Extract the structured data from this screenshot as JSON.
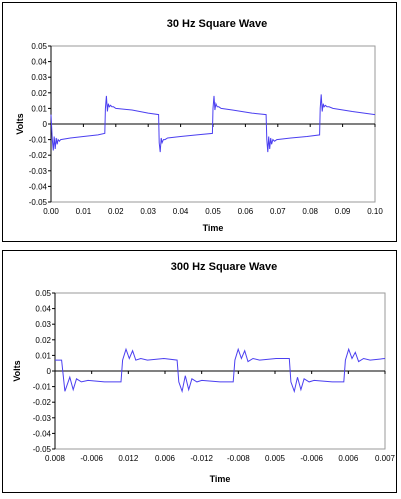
{
  "chart_data": [
    {
      "type": "line",
      "title": "30 Hz Square Wave",
      "xlabel": "Time",
      "ylabel": "Volts",
      "xlim": [
        0,
        0.1
      ],
      "ylim": [
        -0.05,
        0.05
      ],
      "grid": false,
      "line_color": "#4b3ff0",
      "x_ticks": [
        "0.00",
        "0.01",
        "0.02",
        "0.03",
        "0.04",
        "0.05",
        "0.06",
        "0.07",
        "0.08",
        "0.09",
        "0.10"
      ],
      "y_ticks": [
        "-0.05",
        "-0.04",
        "-0.03",
        "-0.02",
        "-0.01",
        "0",
        "0.01",
        "0.02",
        "0.03",
        "0.04",
        "0.05"
      ],
      "series": [
        {
          "x": [
            0.0,
            0.0004,
            0.0007,
            0.001,
            0.0013,
            0.0016,
            0.0019,
            0.0022,
            0.0026,
            0.003,
            0.006,
            0.01,
            0.0145,
            0.0166,
            0.0168,
            0.0171,
            0.0174,
            0.0177,
            0.018,
            0.0184,
            0.0188,
            0.0193,
            0.02,
            0.025,
            0.03,
            0.0332,
            0.0334,
            0.0337,
            0.034,
            0.0343,
            0.0347,
            0.0352,
            0.036,
            0.04,
            0.045,
            0.0498,
            0.05,
            0.0503,
            0.0506,
            0.0509,
            0.0513,
            0.0518,
            0.0525,
            0.056,
            0.062,
            0.0664,
            0.0666,
            0.0669,
            0.0672,
            0.0675,
            0.0678,
            0.0681,
            0.0685,
            0.069,
            0.0697,
            0.074,
            0.079,
            0.0829,
            0.0831,
            0.0834,
            0.0837,
            0.084,
            0.0843,
            0.0847,
            0.0852,
            0.0858,
            0.087,
            0.093,
            0.1
          ],
          "values": [
            0.006,
            -0.01,
            -0.017,
            -0.008,
            -0.016,
            -0.009,
            -0.013,
            -0.01,
            -0.011,
            -0.01,
            -0.009,
            -0.008,
            -0.007,
            -0.006,
            0.01,
            0.018,
            0.008,
            0.013,
            0.011,
            0.012,
            0.011,
            0.011,
            0.01,
            0.009,
            0.007,
            0.006,
            -0.012,
            -0.018,
            -0.009,
            -0.012,
            -0.01,
            -0.01,
            -0.009,
            -0.008,
            -0.007,
            -0.006,
            0.01,
            0.018,
            0.009,
            0.013,
            0.011,
            0.011,
            0.01,
            0.009,
            0.007,
            0.006,
            -0.01,
            -0.018,
            -0.008,
            -0.016,
            -0.009,
            -0.013,
            -0.01,
            -0.011,
            -0.01,
            -0.009,
            -0.008,
            -0.007,
            0.01,
            0.019,
            0.008,
            0.013,
            0.011,
            0.012,
            0.011,
            0.011,
            0.01,
            0.008,
            0.006
          ]
        }
      ]
    },
    {
      "type": "line",
      "title": "300 Hz Square Wave",
      "xlabel": "Time",
      "ylabel": "Volts",
      "ylim": [
        -0.05,
        0.05
      ],
      "grid": false,
      "line_color": "#4b3ff0",
      "x_ticks": [
        "0.008",
        "-0.006",
        "0.012",
        "0.006",
        "-0.012",
        "-0.008",
        "0.005",
        "-0.006",
        "0.006",
        "0.007"
      ],
      "y_ticks": [
        "-0.05",
        "-0.04",
        "-0.03",
        "-0.02",
        "-0.01",
        "0",
        "0.01",
        "0.02",
        "0.03",
        "0.04",
        "0.05"
      ],
      "series": [
        {
          "x_fraction": [
            0.0,
            0.02,
            0.03,
            0.045,
            0.055,
            0.065,
            0.08,
            0.1,
            0.15,
            0.2,
            0.205,
            0.215,
            0.225,
            0.235,
            0.245,
            0.26,
            0.28,
            0.33,
            0.37,
            0.375,
            0.385,
            0.395,
            0.405,
            0.415,
            0.43,
            0.445,
            0.5,
            0.54,
            0.545,
            0.555,
            0.565,
            0.575,
            0.585,
            0.6,
            0.62,
            0.67,
            0.71,
            0.715,
            0.725,
            0.735,
            0.745,
            0.755,
            0.77,
            0.785,
            0.84,
            0.875,
            0.88,
            0.89,
            0.9,
            0.91,
            0.92,
            0.935,
            0.955,
            1.0
          ],
          "values": [
            0.007,
            0.007,
            -0.013,
            -0.004,
            -0.012,
            -0.005,
            -0.007,
            -0.006,
            -0.007,
            -0.007,
            0.007,
            0.014,
            0.008,
            0.013,
            0.007,
            0.008,
            0.007,
            0.008,
            0.007,
            -0.007,
            -0.013,
            -0.003,
            -0.012,
            -0.005,
            -0.007,
            -0.006,
            -0.007,
            -0.007,
            0.007,
            0.014,
            0.008,
            0.013,
            0.006,
            0.008,
            0.007,
            0.008,
            0.008,
            -0.007,
            -0.013,
            -0.004,
            -0.012,
            -0.005,
            -0.007,
            -0.006,
            -0.007,
            -0.007,
            0.007,
            0.014,
            0.008,
            0.012,
            0.006,
            0.008,
            0.007,
            0.008
          ]
        }
      ]
    }
  ]
}
